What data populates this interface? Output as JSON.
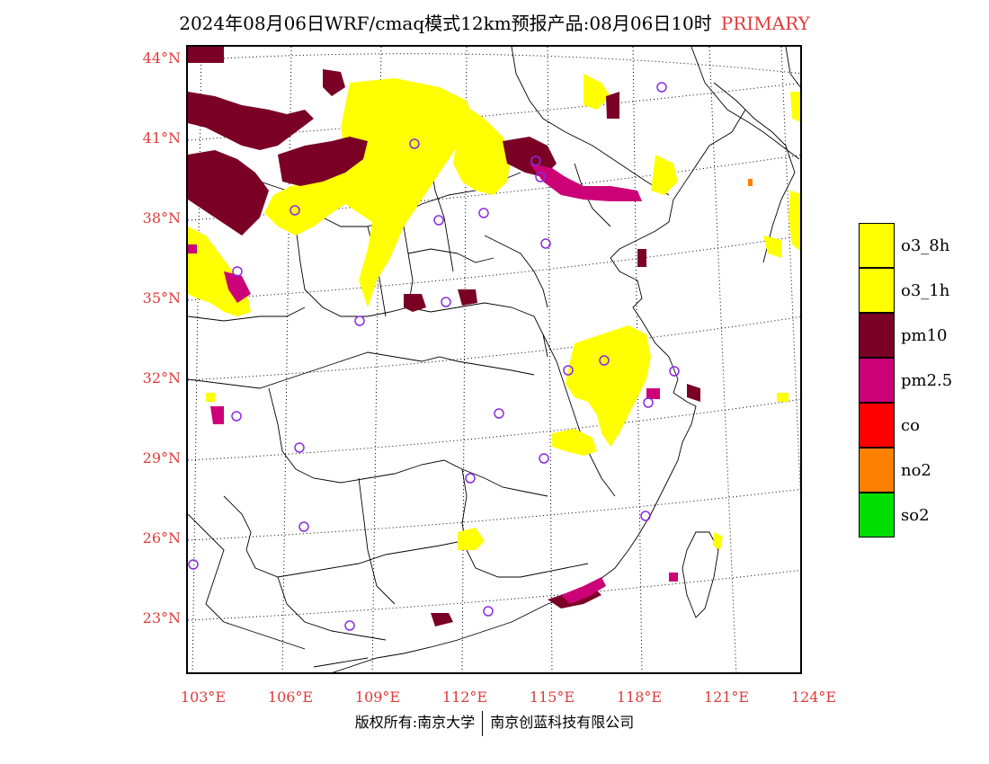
{
  "title": {
    "text": "2024年08月06日WRF/cmaq模式12km预报产品:08月06日10时",
    "tag": "PRIMARY"
  },
  "lat_labels": [
    "44°N",
    "41°N",
    "38°N",
    "35°N",
    "32°N",
    "29°N",
    "26°N",
    "23°N"
  ],
  "lon_labels": [
    "103°E",
    "106°E",
    "109°E",
    "112°E",
    "115°E",
    "118°E",
    "121°E",
    "124°E"
  ],
  "legend": [
    {
      "label": "o3_8h",
      "color": "#ffff00"
    },
    {
      "label": "o3_1h",
      "color": "#ffff00"
    },
    {
      "label": "pm10",
      "color": "#7a0026"
    },
    {
      "label": "pm2.5",
      "color": "#cc0077"
    },
    {
      "label": "co",
      "color": "#ff0000"
    },
    {
      "label": "no2",
      "color": "#ff8000"
    },
    {
      "label": "so2",
      "color": "#00dd00"
    }
  ],
  "footer": {
    "left": "版权所有:南京大学",
    "right": "南京创蓝科技有限公司"
  }
}
